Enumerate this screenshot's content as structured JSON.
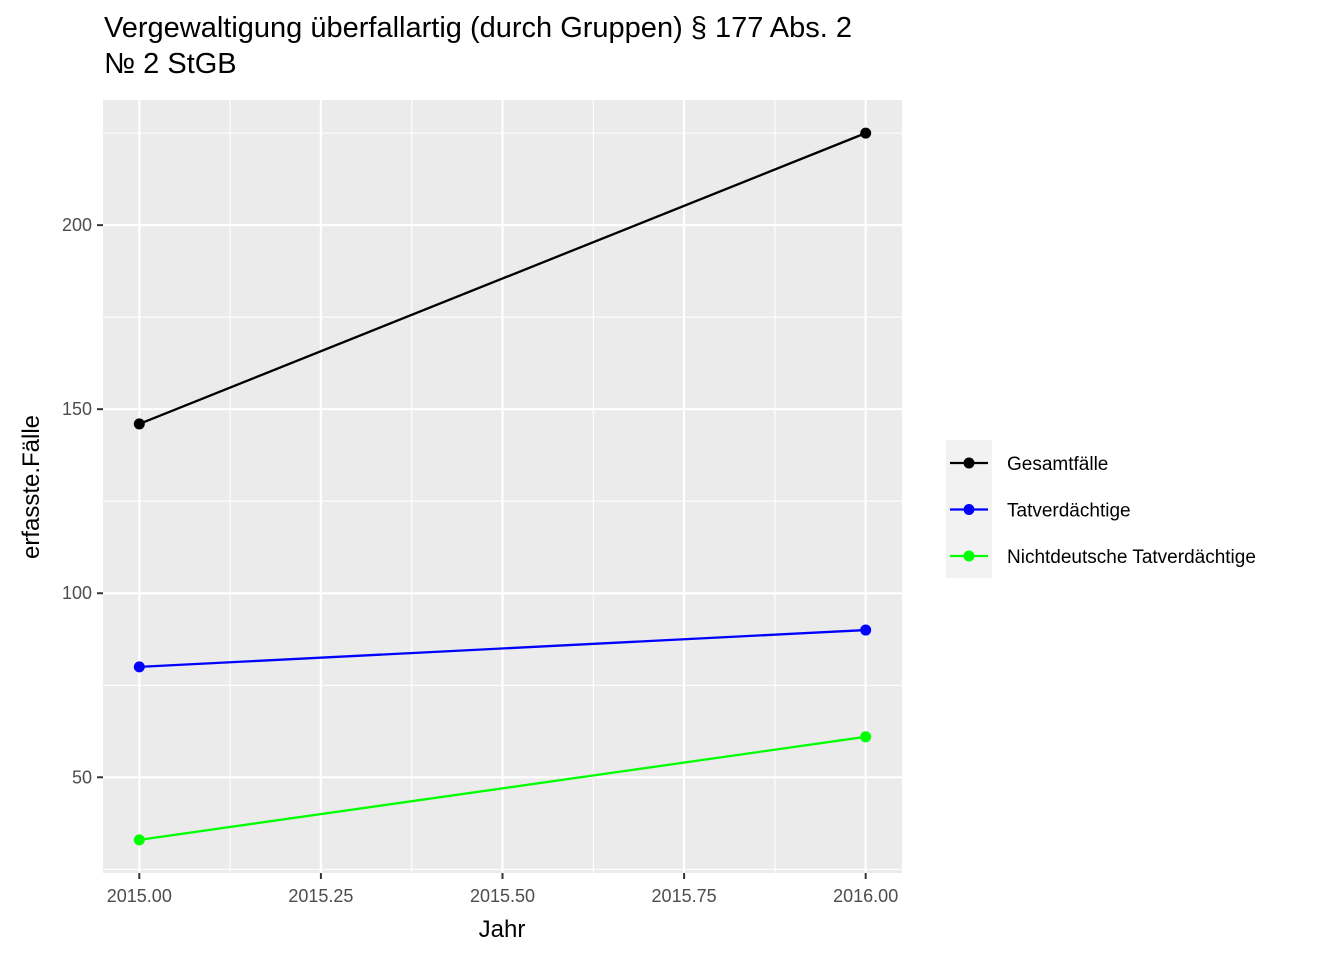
{
  "chart_data": {
    "type": "line",
    "title_line1": "Vergewaltigung überfallartig (durch Gruppen) § 177 Abs. 2",
    "title_line2": "№ 2 StGB",
    "xlabel": "Jahr",
    "ylabel": "erfasste.Fälle",
    "x": [
      2015,
      2016
    ],
    "xlim": [
      2014.95,
      2016.05
    ],
    "ylim": [
      24,
      234
    ],
    "x_ticks": [
      2015.0,
      2015.25,
      2015.5,
      2015.75,
      2016.0
    ],
    "x_tick_labels": [
      "2015.00",
      "2015.25",
      "2015.50",
      "2015.75",
      "2016.00"
    ],
    "y_ticks": [
      50,
      100,
      150,
      200
    ],
    "y_tick_labels": [
      "50",
      "100",
      "150",
      "200"
    ],
    "grid": true,
    "legend_position": "right",
    "series": [
      {
        "name": "Gesamtfälle",
        "values": [
          146,
          225
        ],
        "color": "#000000"
      },
      {
        "name": "Tatverdächtige",
        "values": [
          80,
          90
        ],
        "color": "#0000FF"
      },
      {
        "name": "Nichtdeutsche Tatverdächtige",
        "values": [
          33,
          61
        ],
        "color": "#00FF00"
      }
    ]
  }
}
